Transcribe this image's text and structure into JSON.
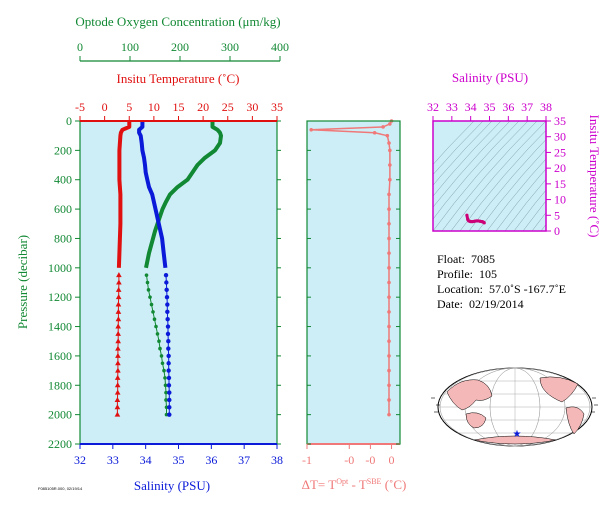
{
  "colors": {
    "panel_bg": "#cdeef7",
    "oxygen": "#118833",
    "temperature": "#e01010",
    "salinity": "#0a1ad8",
    "delta_t": "#f07878",
    "salinity_axis": "#cc00cc",
    "pressure_axis": "#118833",
    "land": "#f4b8b8"
  },
  "chart_data": [
    {
      "type": "line",
      "name": "profile",
      "ylabel": "Pressure (decibar)",
      "y_ticks": [
        "0",
        "200",
        "400",
        "600",
        "800",
        "1000",
        "1200",
        "1400",
        "1600",
        "1800",
        "2000",
        "2200"
      ],
      "ylim": [
        2200,
        0
      ],
      "oxygen_axis": {
        "label": "Optode Oxygen Concentration (μm/kg)",
        "range": [
          0,
          400
        ],
        "ticks": [
          "0",
          "100",
          "200",
          "300",
          "400"
        ]
      },
      "temperature_axis": {
        "label": "Insitu Temperature (˚C)",
        "range": [
          -5,
          35
        ],
        "ticks": [
          "-5",
          "0",
          "5",
          "10",
          "15",
          "20",
          "25",
          "30",
          "35"
        ]
      },
      "salinity_axis": {
        "label": "Salinity (PSU)",
        "range": [
          32,
          38
        ],
        "ticks": [
          "32",
          "33",
          "34",
          "35",
          "36",
          "37",
          "38"
        ]
      },
      "series": [
        {
          "key": "oxygen",
          "pressure": [
            0,
            40,
            60,
            80,
            100,
            150,
            200,
            250,
            300,
            350,
            400,
            450,
            500,
            550,
            600,
            650,
            700,
            750,
            800,
            850,
            900,
            950,
            1000
          ],
          "values": [
            265,
            265,
            275,
            280,
            282,
            280,
            270,
            250,
            235,
            225,
            215,
            195,
            180,
            172,
            165,
            160,
            155,
            150,
            146,
            142,
            138,
            135,
            132
          ]
        },
        {
          "key": "temperature",
          "pressure": [
            0,
            40,
            60,
            80,
            100,
            150,
            200,
            250,
            300,
            350,
            400,
            450,
            500,
            600,
            700,
            800,
            900,
            1000
          ],
          "values": [
            5.0,
            5.0,
            3.6,
            3.3,
            3.2,
            3.1,
            3.0,
            3.0,
            3.0,
            3.0,
            3.0,
            3.1,
            3.2,
            3.2,
            3.2,
            3.1,
            3.0,
            2.9
          ]
        },
        {
          "key": "salinity",
          "pressure": [
            0,
            40,
            60,
            80,
            100,
            150,
            200,
            250,
            300,
            350,
            400,
            450,
            500,
            600,
            700,
            800,
            900,
            1000
          ],
          "values": [
            33.9,
            33.9,
            33.8,
            33.8,
            33.85,
            33.88,
            33.9,
            33.95,
            33.98,
            34.0,
            34.05,
            34.1,
            34.2,
            34.3,
            34.4,
            34.5,
            34.55,
            34.6
          ]
        }
      ],
      "deep_series": [
        {
          "key": "oxygen",
          "pressure": [
            1050,
            1100,
            1150,
            1200,
            1250,
            1300,
            1350,
            1400,
            1450,
            1500,
            1550,
            1600,
            1650,
            1700,
            1750,
            1800,
            1850,
            1900,
            1950,
            2000
          ],
          "values": [
            133,
            135,
            137,
            140,
            143,
            146,
            149,
            152,
            155,
            158,
            160,
            163,
            165,
            168,
            170,
            171,
            172,
            172,
            173,
            173
          ]
        },
        {
          "key": "temperature",
          "pressure": [
            1050,
            1100,
            1150,
            1200,
            1250,
            1300,
            1350,
            1400,
            1450,
            1500,
            1550,
            1600,
            1650,
            1700,
            1750,
            1800,
            1850,
            1900,
            1950,
            2000
          ],
          "values": [
            2.9,
            2.9,
            2.85,
            2.85,
            2.8,
            2.8,
            2.8,
            2.75,
            2.75,
            2.75,
            2.7,
            2.7,
            2.7,
            2.7,
            2.65,
            2.65,
            2.65,
            2.6,
            2.6,
            2.6
          ]
        },
        {
          "key": "salinity",
          "pressure": [
            1050,
            1100,
            1150,
            1200,
            1250,
            1300,
            1350,
            1400,
            1450,
            1500,
            1550,
            1600,
            1650,
            1700,
            1750,
            1800,
            1850,
            1900,
            1950,
            2000
          ],
          "values": [
            34.62,
            34.63,
            34.64,
            34.65,
            34.66,
            34.66,
            34.67,
            34.68,
            34.68,
            34.69,
            34.69,
            34.7,
            34.7,
            34.7,
            34.71,
            34.71,
            34.72,
            34.72,
            34.72,
            34.72
          ]
        }
      ]
    },
    {
      "type": "line",
      "name": "delta-t",
      "xlabel_main": "ΔT= T",
      "xlabel_sup1": "Opt",
      "xlabel_mid": " - T",
      "xlabel_sup2": "SBE",
      "xlabel_unit": " (˚C)",
      "xlim": [
        -1,
        0.1
      ],
      "x_ticks": [
        {
          "v": -1,
          "t": "-1"
        },
        {
          "v": -0.5,
          "t": "-0"
        },
        {
          "v": -0.25,
          "t": "-0"
        },
        {
          "v": 0,
          "t": "0"
        }
      ],
      "pressure": [
        0,
        20,
        40,
        60,
        80,
        100,
        150,
        200,
        300,
        400,
        500,
        600,
        700,
        800,
        900,
        1000,
        1100,
        1200,
        1300,
        1400,
        1500,
        1600,
        1700,
        1800,
        1900,
        2000
      ],
      "values": [
        0,
        -0.02,
        -0.1,
        -0.95,
        -0.2,
        -0.05,
        -0.03,
        -0.02,
        -0.02,
        -0.02,
        -0.03,
        -0.03,
        -0.03,
        -0.03,
        -0.03,
        -0.03,
        -0.03,
        -0.03,
        -0.03,
        -0.03,
        -0.03,
        -0.03,
        -0.03,
        -0.03,
        -0.03,
        -0.03
      ]
    },
    {
      "type": "scatter",
      "name": "ts-diagram",
      "xlabel": "Salinity (PSU)",
      "ylabel": "Insitu Temperature (˚C)",
      "xlim": [
        32,
        38
      ],
      "ylim": [
        0,
        35
      ],
      "x_ticks": [
        "32",
        "33",
        "34",
        "35",
        "36",
        "37",
        "38"
      ],
      "y_ticks": [
        "0",
        "5",
        "10",
        "15",
        "20",
        "25",
        "30",
        "35"
      ],
      "salinity": [
        33.8,
        33.85,
        33.9,
        33.95,
        34.0,
        34.1,
        34.2,
        34.3,
        34.4,
        34.5,
        34.6,
        34.65,
        34.7,
        34.72
      ],
      "temperature": [
        5.0,
        3.6,
        3.2,
        3.1,
        3.0,
        3.0,
        3.1,
        3.2,
        3.2,
        3.1,
        3.0,
        2.9,
        2.7,
        2.6
      ]
    }
  ],
  "float_info": {
    "float_label": "Float:",
    "float_value": "7085",
    "profile_label": "Profile:",
    "profile_value": "105",
    "location_label": "Location:",
    "location_value": "57.0˚S  -167.7˚E",
    "date_label": "Date:",
    "date_value": "02/19/2014"
  },
  "footer_code": "F085105R.000, 02/19/14"
}
